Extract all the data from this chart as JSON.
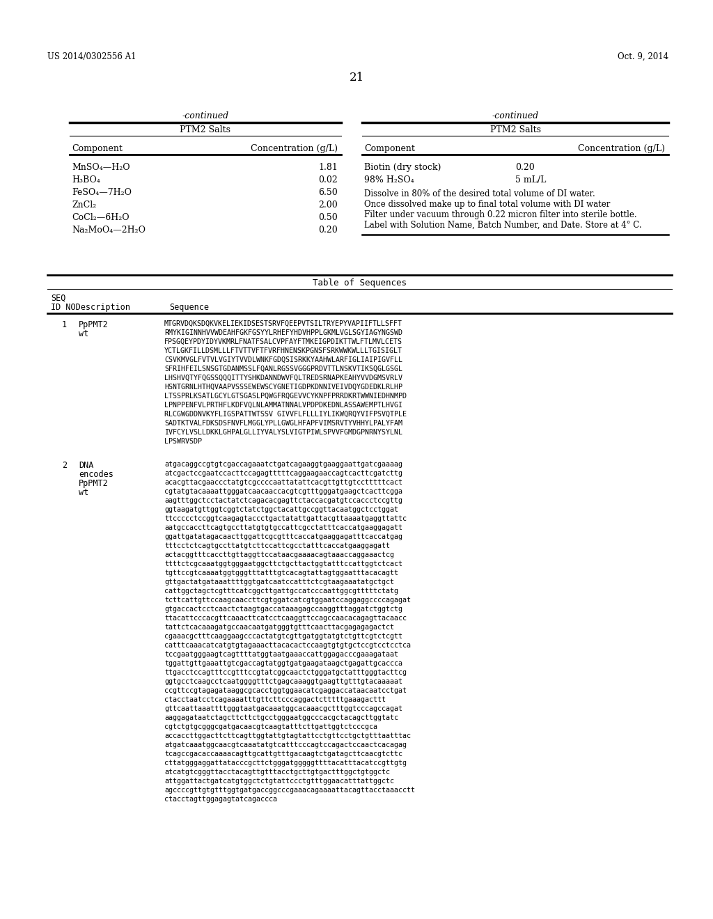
{
  "bg_color": "#ffffff",
  "header_left": "US 2014/0302556 A1",
  "header_right": "Oct. 9, 2014",
  "page_number": "21",
  "left_table": {
    "continued_label": "-continued",
    "title": "PTM2 Salts",
    "col1_header": "Component",
    "col2_header": "Concentration (g/L)",
    "rows": [
      [
        "MnSO₄—H₂O",
        "1.81"
      ],
      [
        "H₃BO₄",
        "0.02"
      ],
      [
        "FeSO₄—7H₂O",
        "6.50"
      ],
      [
        "ZnCl₂",
        "2.00"
      ],
      [
        "CoCl₂—6H₂O",
        "0.50"
      ],
      [
        "Na₂MoO₄—2H₂O",
        "0.20"
      ]
    ]
  },
  "right_table": {
    "continued_label": "-continued",
    "title": "PTM2 Salts",
    "col1_header": "Component",
    "col2_header": "Concentration (g/L)",
    "rows": [
      [
        "Biotin (dry stock)",
        "0.20"
      ],
      [
        "98% H₂SO₄",
        "5 mL/L"
      ]
    ],
    "notes": [
      "Dissolve in 80% of the desired total volume of DI water.",
      "Once dissolved make up to final total volume with DI water",
      "Filter under vacuum through 0.22 micron filter into sterile bottle.",
      "Label with Solution Name, Batch Number, and Date. Store at 4° C."
    ]
  },
  "seq_table": {
    "title": "Table of Sequences",
    "seq_entry1": {
      "id": "1",
      "desc_lines": [
        "PpPMT2",
        "wt"
      ],
      "seq_lines": [
        "MTGRVDQKSDQKVKELIEKIDSESTSRVFQEEPVTSILTRYEPYVAPIIFTLLSFFT",
        "RMYKIGINNHVVWDEAHFGKFGSYYLRHEFYHDVHPPLGKMLVGLSGYIAGYNGSWD",
        "FPSGQEYPDYIDYVKMRLFNATFSALCVPFAYFTMKEIGPDIKTTWLFTLMVLCETS",
        "YCTLGKFILLDSMLLLFTVTTVFTFVRFHNENSKPGNSFSRKWWKWLLLTGISIGLT",
        "CSVKMVGLFVTVLVGIYTVVDLWNKFGDQSISRKKYAAHWLARFIGLIAIPIGVFLL",
        "SFRIHFEILSNSGTGDANMSSLFQANLRGSSVGGGPRDVTTLNSKVTIKSQGLGSGL",
        "LHSHVQTYFQGSSQQQITTYSHKDANNDWVFQLTREDSRNAPKEAHYVVDGMSVRLV",
        "HSNTGRNLHTHQVAAPVSSSEWEWSCYGNETIGDPKDNNIVEIVDQYGDEDKLRLHP",
        "LTSSPRLKSATLGCYLGTSGASLPQWGFRQGEVVCYKNPFPRRDKRTWWNIEDHNMPD",
        "LPNPPENFVLPRTHFLKDFVQLNLAMMATNNALVPDPDKEDNLASSAWEMPTLHVGI",
        "RLCGWGDDNVKYFLIGSPATTWTSSV GIVVFLFLLLIYLIKWQRQYVIFPSVQTPLE",
        "SADTKTVALFDKSDSFNVFLMGGLYPLLGWGLHFAPFVIMSRVTYVHHYLPALYFAM",
        "IVFCYLVSLLDKKLGHPALGLLIYVALYSLVIGTPIWLSPVVFGMDGPNRNYSYLNL",
        "LPSWRVSDP"
      ]
    },
    "seq_entry2": {
      "id": "2",
      "desc_lines": [
        "DNA",
        "encodes",
        "PpPMT2",
        "wt"
      ],
      "seq_lines": [
        "atgacaggccgtgtcgaccagaaatctgatcagaaggtgaaggaattgatcgaaaag",
        "atcgactccgaatccacttccagagtttttcaggaagaaccagtcacttcgatcttg",
        "acacgttacgaaccctatgtcgccccaattatattcacgttgttgtcctttttcact",
        "cgtatgtacaaaattgggatcaacaaccacgtcgtttgggatgaagctcacttcgga",
        "aagtttggctcctactatctcagacacgagttctaccacgatgtccaccctccgttg",
        "ggtaagatgttggtcggtctatctggctacattgccggttacaatggctcctggat",
        "ttccccctccggtcaagagtaccctgactatattgattacgttaaaatgaggttattc",
        "aatgccaccttcagtgccttatgtgtgccattcgcctatttcaccatgaaggagatt",
        "ggattgatatagacaacttggattcgcgtttcaccatgaaggagatttcaccatgag",
        "tttcctctcagtgccttatgtcttccattcgcctatttcaccatgaaggagatt",
        "actacggtttcaccttgttaggttccataacgaaaacagtaaaccaggaaactcg",
        "ttttctcgcaaatggtgggaatggcttctgcttactggtatttccattggtctcact",
        "tgttccgtcaaaatggtgggtttatttgtcacagtattagtggaatttacacagtt",
        "gttgactatgataaattttggtgatcaatccatttctcgtaagaaatatgctgct",
        "cattggctagctcgtttcatcggcttgattgccatcccaattggcgtttttctatg",
        "tcttcattgttccaagcaaccttcgtggatcatcgtggaatccaggaggccccagagat",
        "gtgaccactcctcaactctaagtgaccataaagagccaaggtttaggatctggtctg",
        "ttacattcccacgttcaaacttcatcctcaaggttccagccaacacagagttacaacc",
        "tattctcacaaagatgccaacaatgatgggtgtttcaacttacgagagagactct",
        "cgaaacgctttcaaggaagcccactatgtcgttgatggtatgtctgttcgtctcgtt",
        "catttcaaacatcatgtgtagaaacttacacactccaagtgtgtgctccgtcctcctca",
        "tccgaatgggaagtcagttttatggtaatgaaaccattggagacccgaaagataat",
        "tggattgttgaaattgtcgaccagtatggtgatgaagataagctgagattgcaccca",
        "ttgacctccagtttccgtttccgtatcggcaactctgggatgctatttgggtacttcg",
        "ggtgcctcaagcctcaatggggtttctgagcaaaggtgaagttgtttgtacaaaaat",
        "ccgttccgtagagataaggcgcacctggtggaacatcgaggaccataacaatcctgat",
        "ctacctaatcctcagaaaatttgttcttcccaggactctttttgaaagacttt",
        "gttcaattaaattttgggtaatgacaaatggcacaaacgctttggtcccagccagat",
        "aaggagataatctagcttcttctgcctgggaatggcccacgctacagcttggtatc",
        "cgtctgtgcgggcgatgacaacgtcaagtatttcttgattggtctcccgca",
        "accaccttggacttcttcagttggtattgtagtattcctgttcctgctgtttaatttac",
        "atgatcaaatggcaacgtcaaatatgtcatttcccagtccagactccaactcacagag",
        "tcagccgacaccaaaacagttgcattgtttgacaagtctgatagcttcaacgtcttc",
        "cttatgggaggattatacccgcttctgggatgggggttttacatttacatccgttgtg",
        "atcatgtcgggttacctacagttgtttacctgcttgtgactttggctgtggctc",
        "attggattactgatcatgtggctctgtattccctgtttggaacatttattggctc",
        "agccccgttgtgtttggtgatgaccggcccgaaacagaaaattacagttacctaaacctt",
        "ctacctagttggagagtatcagaccca"
      ]
    }
  }
}
